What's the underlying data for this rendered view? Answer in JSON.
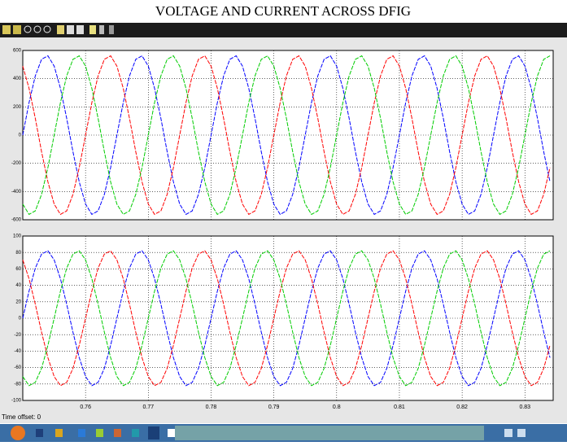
{
  "title": "VOLTAGE AND CURRENT ACROSS DFIG",
  "status": {
    "time_offset": "Time offset:  0"
  },
  "chart_data": [
    {
      "type": "line",
      "xlim": [
        0.75,
        0.8345
      ],
      "ylim": [
        -600,
        600
      ],
      "yticks": [
        -600,
        -400,
        -200,
        0,
        200,
        400,
        600
      ],
      "xticks": [
        0.76,
        0.77,
        0.78,
        0.79,
        0.8,
        0.81,
        0.82,
        0.83
      ],
      "show_xtick_labels": false,
      "grid": true,
      "x": [
        0.75,
        0.751,
        0.752,
        0.753,
        0.754,
        0.755,
        0.756,
        0.757,
        0.758,
        0.759,
        0.76,
        0.761,
        0.762,
        0.763,
        0.764,
        0.765,
        0.766,
        0.767,
        0.768,
        0.769,
        0.77,
        0.771,
        0.772,
        0.773,
        0.774,
        0.775,
        0.776,
        0.777,
        0.778,
        0.779,
        0.78,
        0.781,
        0.782,
        0.783,
        0.784,
        0.785,
        0.786,
        0.787,
        0.788,
        0.789,
        0.79,
        0.791,
        0.792,
        0.793,
        0.794,
        0.795,
        0.796,
        0.797,
        0.798,
        0.799,
        0.8,
        0.801,
        0.802,
        0.803,
        0.804,
        0.805,
        0.806,
        0.807,
        0.808,
        0.809,
        0.81,
        0.811,
        0.812,
        0.813,
        0.814,
        0.815,
        0.816,
        0.817,
        0.818,
        0.819,
        0.82,
        0.821,
        0.822,
        0.823,
        0.824,
        0.825,
        0.826,
        0.827,
        0.828,
        0.829,
        0.83,
        0.831,
        0.832,
        0.833,
        0.834
      ],
      "series": [
        {
          "color": "#0000ff",
          "values": [
            0,
            230,
            420,
            537,
            562,
            489,
            332,
            118,
            -118,
            -332,
            -489,
            -562,
            -537,
            -420,
            -230,
            0,
            230,
            420,
            537,
            562,
            489,
            332,
            118,
            -118,
            -332,
            -489,
            -562,
            -537,
            -420,
            -230,
            0,
            230,
            420,
            537,
            562,
            489,
            332,
            118,
            -118,
            -332,
            -489,
            -562,
            -537,
            -420,
            -230,
            0,
            230,
            420,
            537,
            562,
            489,
            332,
            118,
            -118,
            -332,
            -489,
            -562,
            -537,
            -420,
            -230,
            0,
            230,
            420,
            537,
            562,
            489,
            332,
            118,
            -118,
            -332,
            -489,
            -562,
            -537,
            -420,
            -230,
            0,
            230,
            420,
            537,
            562,
            489,
            332,
            118,
            -118,
            -332
          ]
        },
        {
          "color": "#ff0000",
          "values": [
            489,
            332,
            118,
            -118,
            -332,
            -489,
            -562,
            -537,
            -420,
            -230,
            0,
            230,
            420,
            537,
            562,
            489,
            332,
            118,
            -118,
            -332,
            -489,
            -562,
            -537,
            -420,
            -230,
            0,
            230,
            420,
            537,
            562,
            489,
            332,
            118,
            -118,
            -332,
            -489,
            -562,
            -537,
            -420,
            -230,
            0,
            230,
            420,
            537,
            562,
            489,
            332,
            118,
            -118,
            -332,
            -489,
            -562,
            -537,
            -420,
            -230,
            0,
            230,
            420,
            537,
            562,
            489,
            332,
            118,
            -118,
            -332,
            -489,
            -562,
            -537,
            -420,
            -230,
            0,
            230,
            420,
            537,
            562,
            489,
            332,
            118,
            -118,
            -332,
            -489,
            -562,
            -537,
            -420,
            -230
          ]
        },
        {
          "color": "#00cc00",
          "values": [
            -489,
            -562,
            -537,
            -420,
            -230,
            0,
            230,
            420,
            537,
            562,
            489,
            332,
            118,
            -118,
            -332,
            -489,
            -562,
            -537,
            -420,
            -230,
            0,
            230,
            420,
            537,
            562,
            489,
            332,
            118,
            -118,
            -332,
            -489,
            -562,
            -537,
            -420,
            -230,
            0,
            230,
            420,
            537,
            562,
            489,
            332,
            118,
            -118,
            -332,
            -489,
            -562,
            -537,
            -420,
            -230,
            0,
            230,
            420,
            537,
            562,
            489,
            332,
            118,
            -118,
            -332,
            -489,
            -562,
            -537,
            -420,
            -230,
            0,
            230,
            420,
            537,
            562,
            489,
            332,
            118,
            -118,
            -332,
            -489,
            -562,
            -537,
            -420,
            -230,
            0,
            230,
            420,
            537,
            562
          ]
        }
      ]
    },
    {
      "type": "line",
      "xlim": [
        0.75,
        0.8345
      ],
      "ylim": [
        -100,
        100
      ],
      "yticks": [
        -100,
        -80,
        -60,
        -40,
        -20,
        0,
        20,
        40,
        60,
        80,
        100
      ],
      "xticks": [
        0.76,
        0.77,
        0.78,
        0.79,
        0.8,
        0.81,
        0.82,
        0.83
      ],
      "show_xtick_labels": true,
      "grid": true,
      "x": [
        0.75,
        0.751,
        0.752,
        0.753,
        0.754,
        0.755,
        0.756,
        0.757,
        0.758,
        0.759,
        0.76,
        0.761,
        0.762,
        0.763,
        0.764,
        0.765,
        0.766,
        0.767,
        0.768,
        0.769,
        0.77,
        0.771,
        0.772,
        0.773,
        0.774,
        0.775,
        0.776,
        0.777,
        0.778,
        0.779,
        0.78,
        0.781,
        0.782,
        0.783,
        0.784,
        0.785,
        0.786,
        0.787,
        0.788,
        0.789,
        0.79,
        0.791,
        0.792,
        0.793,
        0.794,
        0.795,
        0.796,
        0.797,
        0.798,
        0.799,
        0.8,
        0.801,
        0.802,
        0.803,
        0.804,
        0.805,
        0.806,
        0.807,
        0.808,
        0.809,
        0.81,
        0.811,
        0.812,
        0.813,
        0.814,
        0.815,
        0.816,
        0.817,
        0.818,
        0.819,
        0.82,
        0.821,
        0.822,
        0.823,
        0.824,
        0.825,
        0.826,
        0.827,
        0.828,
        0.829,
        0.83,
        0.831,
        0.832,
        0.833,
        0.834
      ],
      "series": [
        {
          "color": "#0000ff",
          "values": [
            0,
            33,
            61,
            78,
            82,
            71,
            48,
            17,
            -17,
            -48,
            -71,
            -82,
            -78,
            -61,
            -33,
            0,
            33,
            61,
            78,
            82,
            71,
            48,
            17,
            -17,
            -48,
            -71,
            -82,
            -78,
            -61,
            -33,
            0,
            33,
            61,
            78,
            82,
            71,
            48,
            17,
            -17,
            -48,
            -71,
            -82,
            -78,
            -61,
            -33,
            0,
            33,
            61,
            78,
            82,
            71,
            48,
            17,
            -17,
            -48,
            -71,
            -82,
            -78,
            -61,
            -33,
            0,
            33,
            61,
            78,
            82,
            71,
            48,
            17,
            -17,
            -48,
            -71,
            -82,
            -78,
            -61,
            -33,
            0,
            33,
            61,
            78,
            82,
            71,
            48,
            17,
            -17,
            -48
          ]
        },
        {
          "color": "#ff0000",
          "values": [
            71,
            48,
            17,
            -17,
            -48,
            -71,
            -82,
            -78,
            -61,
            -33,
            0,
            33,
            61,
            78,
            82,
            71,
            48,
            17,
            -17,
            -48,
            -71,
            -82,
            -78,
            -61,
            -33,
            0,
            33,
            61,
            78,
            82,
            71,
            48,
            17,
            -17,
            -48,
            -71,
            -82,
            -78,
            -61,
            -33,
            0,
            33,
            61,
            78,
            82,
            71,
            48,
            17,
            -17,
            -48,
            -71,
            -82,
            -78,
            -61,
            -33,
            0,
            33,
            61,
            78,
            82,
            71,
            48,
            17,
            -17,
            -48,
            -71,
            -82,
            -78,
            -61,
            -33,
            0,
            33,
            61,
            78,
            82,
            71,
            48,
            17,
            -17,
            -48,
            -71,
            -82,
            -78,
            -61,
            -33
          ]
        },
        {
          "color": "#00cc00",
          "values": [
            -71,
            -82,
            -78,
            -61,
            -33,
            0,
            33,
            61,
            78,
            82,
            71,
            48,
            17,
            -17,
            -48,
            -71,
            -82,
            -78,
            -61,
            -33,
            0,
            33,
            61,
            78,
            82,
            71,
            48,
            17,
            -17,
            -48,
            -71,
            -82,
            -78,
            -61,
            -33,
            0,
            33,
            61,
            78,
            82,
            71,
            48,
            17,
            -17,
            -48,
            -71,
            -82,
            -78,
            -61,
            -33,
            0,
            33,
            61,
            78,
            82,
            71,
            48,
            17,
            -17,
            -48,
            -71,
            -82,
            -78,
            -61,
            -33,
            0,
            33,
            61,
            78,
            82,
            71,
            48,
            17,
            -17,
            -48,
            -71,
            -82,
            -78,
            -61,
            -33,
            0,
            33,
            61,
            78,
            82
          ]
        }
      ]
    }
  ]
}
